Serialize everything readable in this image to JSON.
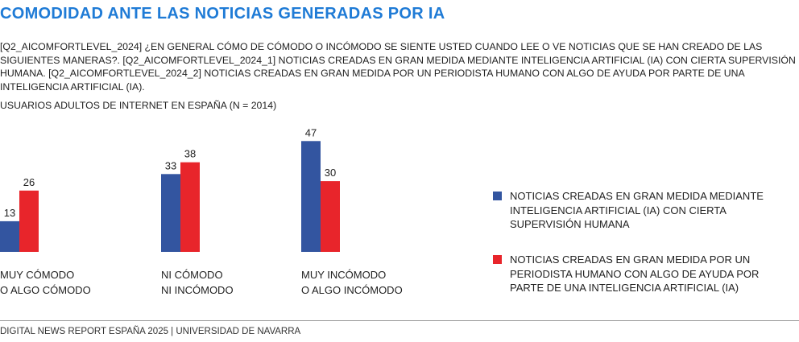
{
  "header": {
    "title": "COMODIDAD ANTE LAS NOTICIAS GENERADAS POR IA",
    "question": "[Q2_AICOMFORTLEVEL_2024] ¿EN GENERAL CÓMO DE CÓMODO O INCÓMODO SE SIENTE USTED CUANDO LEE O VE NOTICIAS QUE SE HAN CREADO DE LAS SIGUIENTES MANERAS?. [Q2_AICOMFORTLEVEL_2024_1] NOTICIAS CREADAS EN GRAN MEDIDA MEDIANTE INTELIGENCIA ARTIFICIAL (IA) CON CIERTA SUPERVISIÓN HUMANA. [Q2_AICOMFORTLEVEL_2024_2] NOTICIAS CREADAS EN GRAN MEDIDA POR UN PERIODISTA HUMANO CON ALGO DE AYUDA POR PARTE DE UNA INTELIGENCIA ARTIFICIAL (IA).",
    "sample": "USUARIOS ADULTOS DE INTERNET EN ESPAÑA (N = 2014)"
  },
  "chart_data": {
    "type": "bar",
    "categories": [
      [
        "MUY CÓMODO",
        "O ALGO CÓMODO"
      ],
      [
        "NI CÓMODO",
        "NI INCÓMODO"
      ],
      [
        "MUY INCÓMODO",
        "O ALGO INCÓMODO"
      ]
    ],
    "series": [
      {
        "name": "NOTICIAS CREADAS EN GRAN MEDIDA MEDIANTE INTELIGENCIA ARTIFICIAL (IA) CON CIERTA SUPERVISIÓN HUMANA",
        "values": [
          13,
          33,
          47
        ],
        "color": "#3355a0"
      },
      {
        "name": "NOTICIAS CREADAS EN GRAN MEDIDA POR UN PERIODISTA HUMANO CON ALGO DE AYUDA POR PARTE DE UNA INTELIGENCIA ARTIFICIAL (IA)",
        "values": [
          26,
          38,
          30
        ],
        "color": "#e8252b"
      }
    ],
    "title": "COMODIDAD ANTE LAS NOTICIAS GENERADAS POR IA",
    "ylim": [
      0,
      50
    ],
    "grid": false,
    "data_labels": true,
    "legend": "right"
  },
  "footer": {
    "source": "DIGITAL NEWS REPORT ESPAÑA 2025 | UNIVERSIDAD DE NAVARRA"
  }
}
